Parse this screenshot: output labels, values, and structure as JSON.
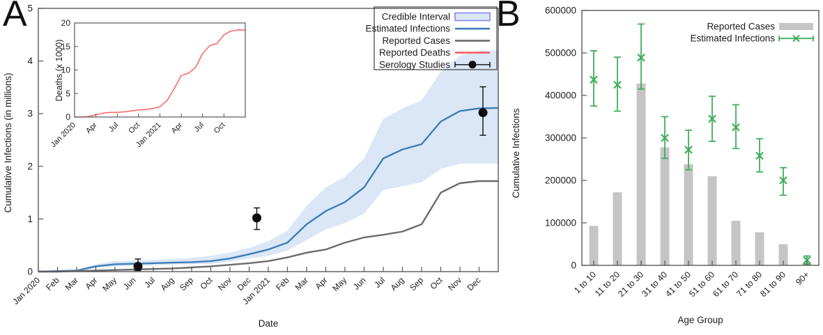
{
  "chart_data": [
    {
      "id": "panel_a",
      "type": "line",
      "panel_label": "A",
      "xlabel": "Date",
      "ylabel": "Cumulative Infections (in millions)",
      "ylim": [
        0,
        5
      ],
      "yticks": [
        0,
        1,
        2,
        3,
        4,
        5
      ],
      "x_tick_labels": [
        "Jan 2020",
        "Feb",
        "Mar",
        "Apr",
        "May",
        "Jun",
        "Jul",
        "Aug",
        "Sep",
        "Oct",
        "Nov",
        "Dec",
        "Jan 2021",
        "Feb",
        "Mar",
        "Apr",
        "May",
        "Jun",
        "Jul",
        "Aug",
        "Sep",
        "Oct",
        "Nov",
        "Dec"
      ],
      "series": [
        {
          "name": "Credible Interval",
          "type": "band",
          "color": "#dbe7f6",
          "lower": [
            0,
            0,
            0.01,
            0.07,
            0.1,
            0.11,
            0.12,
            0.13,
            0.14,
            0.15,
            0.19,
            0.25,
            0.3,
            0.4,
            0.6,
            0.8,
            0.92,
            1.1,
            1.55,
            1.62,
            1.7,
            1.95,
            2.05,
            2.05,
            2.05
          ],
          "upper": [
            0,
            0.01,
            0.03,
            0.14,
            0.2,
            0.21,
            0.22,
            0.24,
            0.26,
            0.3,
            0.36,
            0.45,
            0.58,
            0.78,
            1.25,
            1.6,
            1.8,
            2.15,
            2.9,
            3.1,
            3.25,
            3.8,
            4.1,
            4.2,
            4.2
          ]
        },
        {
          "name": "Estimated Infections",
          "type": "line",
          "color": "#3e7db8",
          "values": [
            0,
            0.01,
            0.02,
            0.1,
            0.14,
            0.15,
            0.16,
            0.17,
            0.18,
            0.2,
            0.25,
            0.33,
            0.42,
            0.55,
            0.9,
            1.15,
            1.32,
            1.6,
            2.15,
            2.32,
            2.42,
            2.85,
            3.05,
            3.1,
            3.11
          ]
        },
        {
          "name": "Reported Cases",
          "type": "line",
          "color": "#6b6b6b",
          "values": [
            0,
            0,
            0.01,
            0.02,
            0.03,
            0.04,
            0.05,
            0.06,
            0.08,
            0.1,
            0.13,
            0.16,
            0.2,
            0.27,
            0.36,
            0.42,
            0.55,
            0.65,
            0.7,
            0.76,
            0.9,
            1.5,
            1.68,
            1.72,
            1.72
          ]
        },
        {
          "name": "Serology Studies",
          "type": "points",
          "color": "#0d0d0d",
          "points": [
            {
              "x": 5.2,
              "y": 0.1,
              "lo": 0.02,
              "hi": 0.24
            },
            {
              "x": 11.4,
              "y": 1.02,
              "lo": 0.8,
              "hi": 1.21
            },
            {
              "x": 23.2,
              "y": 3.02,
              "lo": 2.59,
              "hi": 3.51
            }
          ]
        }
      ],
      "legend": [
        {
          "label": "Credible Interval",
          "swatch": "band",
          "fill": "#dbe7f6",
          "stroke": "#8585ef"
        },
        {
          "label": "Estimated Infections",
          "swatch": "line",
          "color": "#3e7db8"
        },
        {
          "label": "Reported Cases",
          "swatch": "line",
          "color": "#6b6b6b"
        },
        {
          "label": "Reported Deaths",
          "swatch": "line",
          "color": "#fb5d5d"
        },
        {
          "label": "Serology Studies",
          "swatch": "errorbar-dot",
          "color": "#0d0d0d"
        }
      ],
      "inset": {
        "ylabel": "Deaths (x 1000)",
        "ylim": [
          0,
          20
        ],
        "yticks": [
          0,
          5,
          10,
          15,
          20
        ],
        "x_tick_step": 3,
        "x_tick_labels": [
          "Jan 2020",
          "Apr",
          "Jul",
          "Oct",
          "Jan 2021",
          "Apr",
          "Jul",
          "Oct"
        ],
        "series": [
          {
            "name": "Reported Deaths",
            "type": "line",
            "color": "#fb6a6a",
            "values": [
              0,
              0,
              0.1,
              0.5,
              0.8,
              1,
              1,
              1.1,
              1.3,
              1.5,
              1.6,
              1.8,
              2.2,
              3.5,
              6,
              8.8,
              9.3,
              10.5,
              13.5,
              15.2,
              15.6,
              17.5,
              18.3,
              18.5,
              18.5
            ]
          }
        ]
      }
    },
    {
      "id": "panel_b",
      "type": "bar",
      "panel_label": "B",
      "xlabel": "Age Group",
      "ylabel": "Cumulative Infections",
      "ylim": [
        0,
        600000
      ],
      "yticks": [
        0,
        100000,
        200000,
        300000,
        400000,
        500000,
        600000
      ],
      "categories": [
        "1 to 10",
        "11 to 20",
        "21 to 30",
        "31 to 40",
        "41 to 50",
        "51 to 60",
        "61 to 70",
        "71 to 80",
        "81 to 90",
        "90+"
      ],
      "series": [
        {
          "name": "Reported Cases",
          "type": "bar",
          "color": "#c5c5c5",
          "values": [
            93000,
            172000,
            428000,
            278000,
            238000,
            210000,
            105000,
            78000,
            50000,
            5000
          ]
        },
        {
          "name": "Estimated Infections",
          "type": "errorbar",
          "color": "#3fae5a",
          "values": [
            437000,
            425000,
            489000,
            300000,
            272000,
            345000,
            325000,
            258000,
            200000,
            12000
          ],
          "lo": [
            375000,
            363000,
            415000,
            252000,
            225000,
            292000,
            275000,
            220000,
            165000,
            3000
          ],
          "hi": [
            505000,
            490000,
            568000,
            350000,
            318000,
            398000,
            378000,
            298000,
            230000,
            22000
          ]
        }
      ],
      "legend": [
        {
          "label": "Reported Cases",
          "swatch": "bar",
          "color": "#c5c5c5"
        },
        {
          "label": "Estimated Infections",
          "swatch": "errorbar-x",
          "color": "#3fae5a"
        }
      ]
    }
  ]
}
